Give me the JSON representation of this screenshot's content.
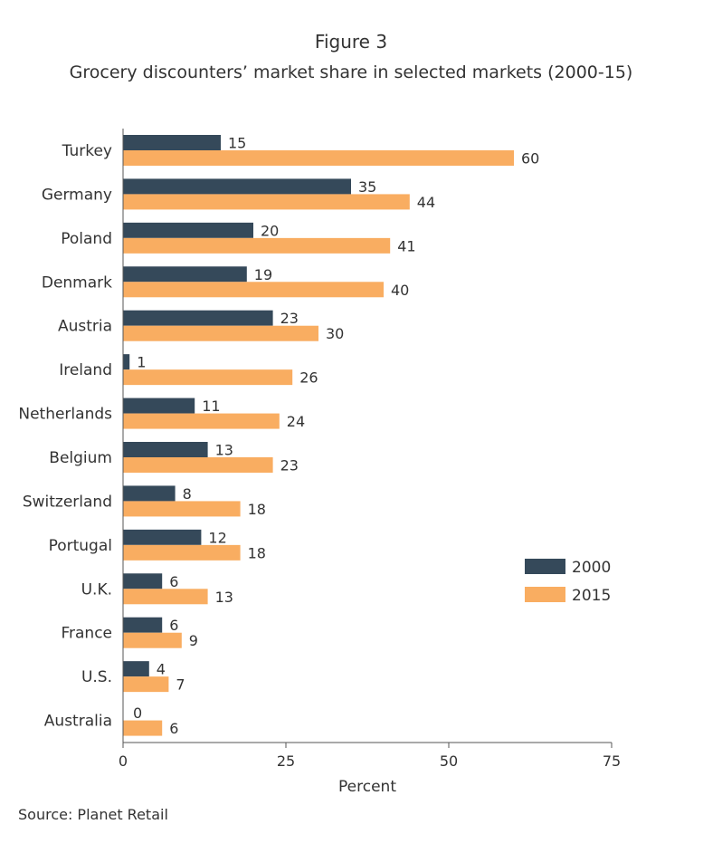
{
  "chart_data": {
    "type": "bar",
    "orientation": "horizontal",
    "title": "Figure 3",
    "subtitle": "Grocery discounters’ market share in selected markets (2000-15)",
    "xlabel": "Percent",
    "ylabel": "",
    "xlim": [
      0,
      75
    ],
    "xticks": [
      "0",
      "25",
      "50",
      "75"
    ],
    "grid": false,
    "legend_position": "right",
    "categories": [
      "Turkey",
      "Germany",
      "Poland",
      "Denmark",
      "Austria",
      "Ireland",
      "Netherlands",
      "Belgium",
      "Switzerland",
      "Portugal",
      "U.K.",
      "France",
      "U.S.",
      "Australia"
    ],
    "series": [
      {
        "name": "2000",
        "color": "#35495a",
        "values": [
          15,
          35,
          20,
          19,
          23,
          1,
          11,
          13,
          8,
          12,
          6,
          6,
          4,
          0
        ]
      },
      {
        "name": "2015",
        "color": "#f9ad61",
        "values": [
          60,
          44,
          41,
          40,
          30,
          26,
          24,
          23,
          18,
          18,
          13,
          9,
          7,
          6
        ]
      }
    ],
    "source": "Source: Planet Retail"
  }
}
